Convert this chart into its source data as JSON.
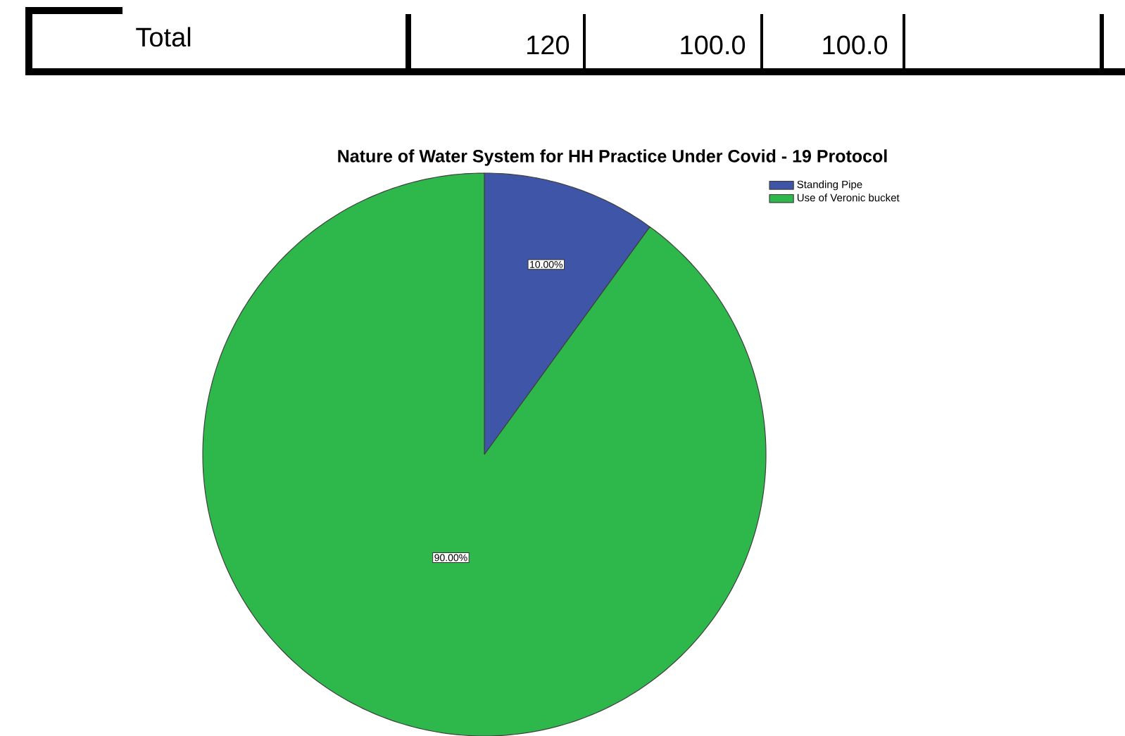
{
  "chart_data": {
    "type": "pie",
    "title": "Nature of Water System for HH Practice Under Covid - 19 Protocol",
    "categories": [
      "Standing Pipe",
      "Use of Veronic bucket"
    ],
    "values": [
      10,
      90
    ],
    "colors": [
      "#3f55a8",
      "#2eb84b"
    ],
    "value_labels": [
      "10.00%",
      "90.00%"
    ],
    "legend": "top right",
    "annotations": [
      "Total",
      "120",
      "100.0",
      "100.0"
    ]
  }
}
